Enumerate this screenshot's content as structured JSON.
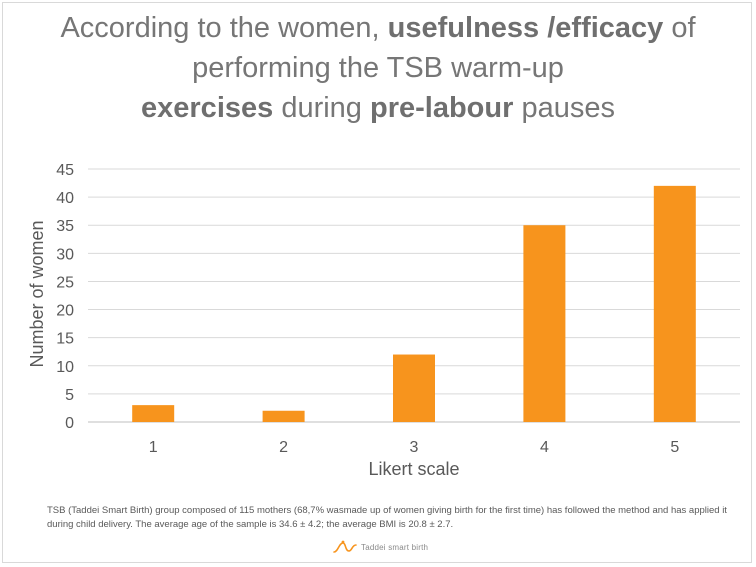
{
  "title": {
    "line1_a": "According to the women, ",
    "line1_b": "usefulness /efficacy",
    "line1_c": " of",
    "line2": "performing the TSB warm-up",
    "line3_a": "exercises",
    "line3_b": " during ",
    "line3_c": "pre-labour",
    "line3_d": " pauses"
  },
  "chart_data": {
    "type": "bar",
    "title": "According to the women, usefulness /efficacy of performing the TSB warm-up exercises during pre-labour pauses",
    "categories": [
      "1",
      "2",
      "3",
      "4",
      "5"
    ],
    "values": [
      3,
      2,
      12,
      35,
      42
    ],
    "xlabel": "Likert scale",
    "ylabel": "Number of women",
    "ylim": [
      0,
      45
    ],
    "yticks": [
      0,
      5,
      10,
      15,
      20,
      25,
      30,
      35,
      40,
      45
    ],
    "grid": true,
    "bar_color": "#f7941d",
    "grid_color": "#d9d9d9",
    "legend": "none"
  },
  "footnote": "TSB (Taddei Smart Birth) group composed of 115 mothers (68,7% wasmade up of women giving birth for the first time) has followed the method and has applied it during child delivery. The average age of the sample is 34.6 ± 4.2; the average BMI is 20.8 ± 2.7.",
  "brand": {
    "name": "Taddei smart birth",
    "icon": "stork-wave-icon",
    "color": "#f7941d"
  }
}
